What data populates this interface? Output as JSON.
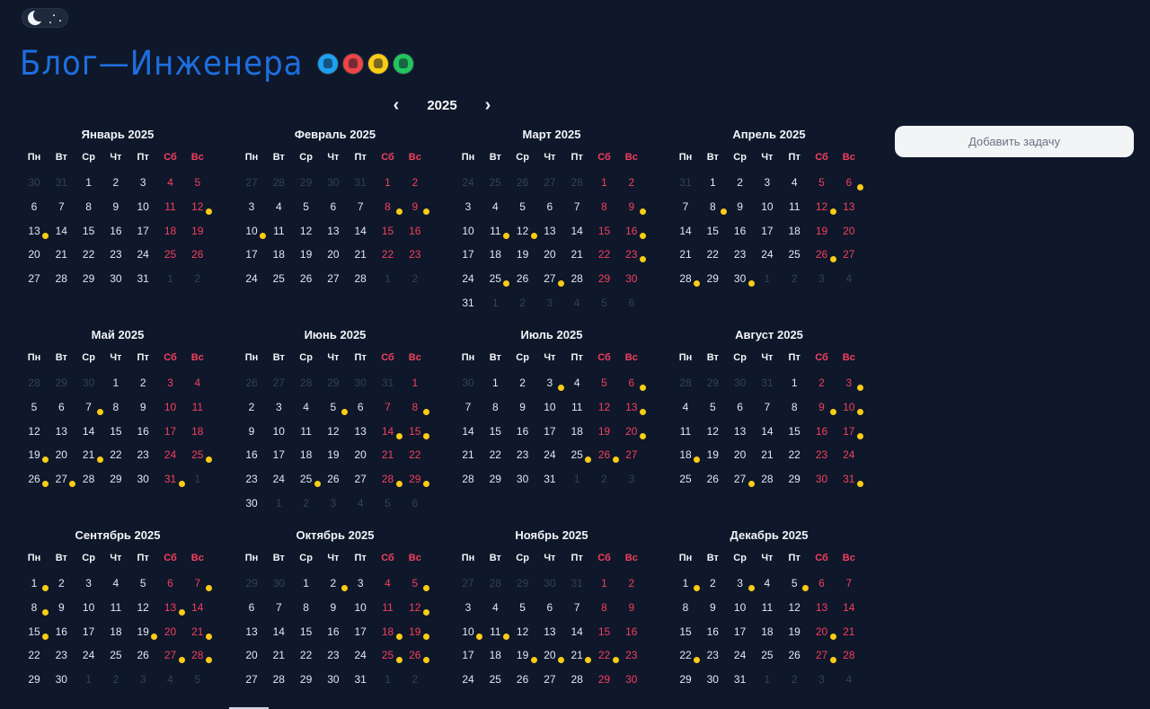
{
  "header": {
    "logo_text": "Блог—Инженера",
    "avatars": [
      {
        "name": "avatar-blue",
        "color": "#1da1f2"
      },
      {
        "name": "avatar-red",
        "color": "#ef4444"
      },
      {
        "name": "avatar-yellow",
        "color": "#facc15"
      },
      {
        "name": "avatar-green",
        "color": "#22c55e"
      }
    ]
  },
  "theme_toggle": {
    "icon": "moon-icon",
    "mode": "dark"
  },
  "year_nav": {
    "prev_icon": "chevron-left-icon",
    "year": "2025",
    "next_icon": "chevron-right-icon"
  },
  "add_task_label": "Добавить задачу",
  "weekdays": [
    "Пн",
    "Вт",
    "Ср",
    "Чт",
    "Пт",
    "Сб",
    "Вс"
  ],
  "colors": {
    "background": "#0f172a",
    "weekend": "#f43f5e",
    "task_dot": "#facc15",
    "logo": "#1d6fe0"
  },
  "months": [
    {
      "title": "Январь 2025",
      "first_weekday": 3,
      "days": 31,
      "prev_days": 31,
      "dots": [
        12,
        13
      ]
    },
    {
      "title": "Февраль 2025",
      "first_weekday": 6,
      "days": 28,
      "prev_days": 31,
      "dots": [
        8,
        9,
        10
      ]
    },
    {
      "title": "Март 2025",
      "first_weekday": 6,
      "days": 31,
      "prev_days": 28,
      "dots": [
        9,
        11,
        12,
        16,
        23,
        25,
        27
      ]
    },
    {
      "title": "Апрель 2025",
      "first_weekday": 2,
      "days": 30,
      "prev_days": 31,
      "dots": [
        6,
        8,
        12,
        26,
        28,
        30
      ]
    },
    {
      "title": "Май 2025",
      "first_weekday": 4,
      "days": 31,
      "prev_days": 30,
      "dots": [
        7,
        19,
        21,
        25,
        26,
        27,
        31
      ]
    },
    {
      "title": "Июнь 2025",
      "first_weekday": 7,
      "days": 30,
      "prev_days": 31,
      "dots": [
        5,
        8,
        14,
        15,
        25,
        28,
        29
      ]
    },
    {
      "title": "Июль 2025",
      "first_weekday": 2,
      "days": 31,
      "prev_days": 30,
      "dots": [
        3,
        6,
        13,
        20,
        25,
        26
      ]
    },
    {
      "title": "Август 2025",
      "first_weekday": 5,
      "days": 31,
      "prev_days": 31,
      "dots": [
        3,
        9,
        10,
        17,
        18,
        27,
        31
      ]
    },
    {
      "title": "Сентябрь 2025",
      "first_weekday": 1,
      "days": 30,
      "prev_days": 31,
      "dots": [
        1,
        7,
        8,
        13,
        15,
        19,
        21,
        27,
        28
      ]
    },
    {
      "title": "Октябрь 2025",
      "first_weekday": 3,
      "days": 31,
      "prev_days": 30,
      "dots": [
        2,
        5,
        12,
        18,
        19,
        25,
        26
      ]
    },
    {
      "title": "Ноябрь 2025",
      "first_weekday": 6,
      "days": 30,
      "prev_days": 31,
      "dots": [
        10,
        11,
        19,
        20,
        21,
        22
      ]
    },
    {
      "title": "Декабрь 2025",
      "first_weekday": 1,
      "days": 31,
      "prev_days": 30,
      "dots": [
        1,
        3,
        5,
        20,
        22,
        27
      ]
    }
  ]
}
